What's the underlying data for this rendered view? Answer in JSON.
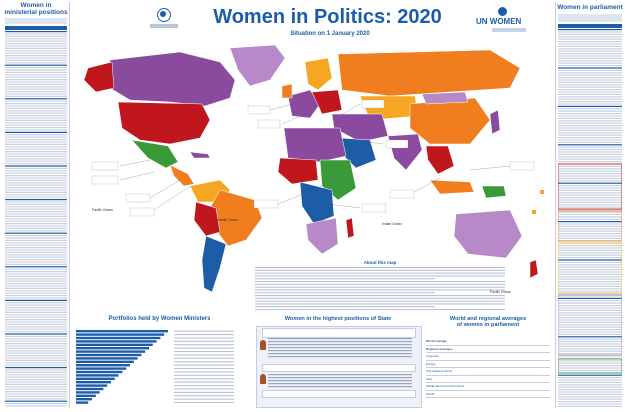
{
  "header": {
    "title": "Women in Politics: 2020",
    "subtitle": "Situation on 1 January 2020",
    "un_women": "UN WOMEN"
  },
  "left_panel": {
    "title_line1": "Women in",
    "title_line2": "ministerial positions"
  },
  "right_panel": {
    "title": "Women in parliament"
  },
  "bottom": {
    "portfolios_title": "Portfolios held by Women Ministers",
    "highest_title": "Women in the highest positions of State",
    "regional_title_line1": "World and regional averages",
    "regional_title_line2": "of women in parliament",
    "regional_rows": [
      "World average",
      "Regional averages",
      "Americas",
      "Europe",
      "Sub-Saharan Africa",
      "Asia",
      "Middle East and North Africa",
      "Pacific"
    ]
  },
  "about": {
    "title": "About this map"
  },
  "oceans": {
    "pacific_left": "Pacific Ocean",
    "atlantic": "Atlantic Ocean",
    "indian": "Indian Ocean",
    "pacific_right": "Pacific Ocean"
  },
  "map_colors": {
    "ocean": "#ffffff",
    "no_data": "#d9d9d9",
    "high": "#c0161e",
    "mid_high": "#f07d1e",
    "mid": "#f5a623",
    "purple": "#8a4a9e",
    "lilac": "#b889c8",
    "blue": "#1d5da8",
    "green": "#3a9a3a"
  }
}
